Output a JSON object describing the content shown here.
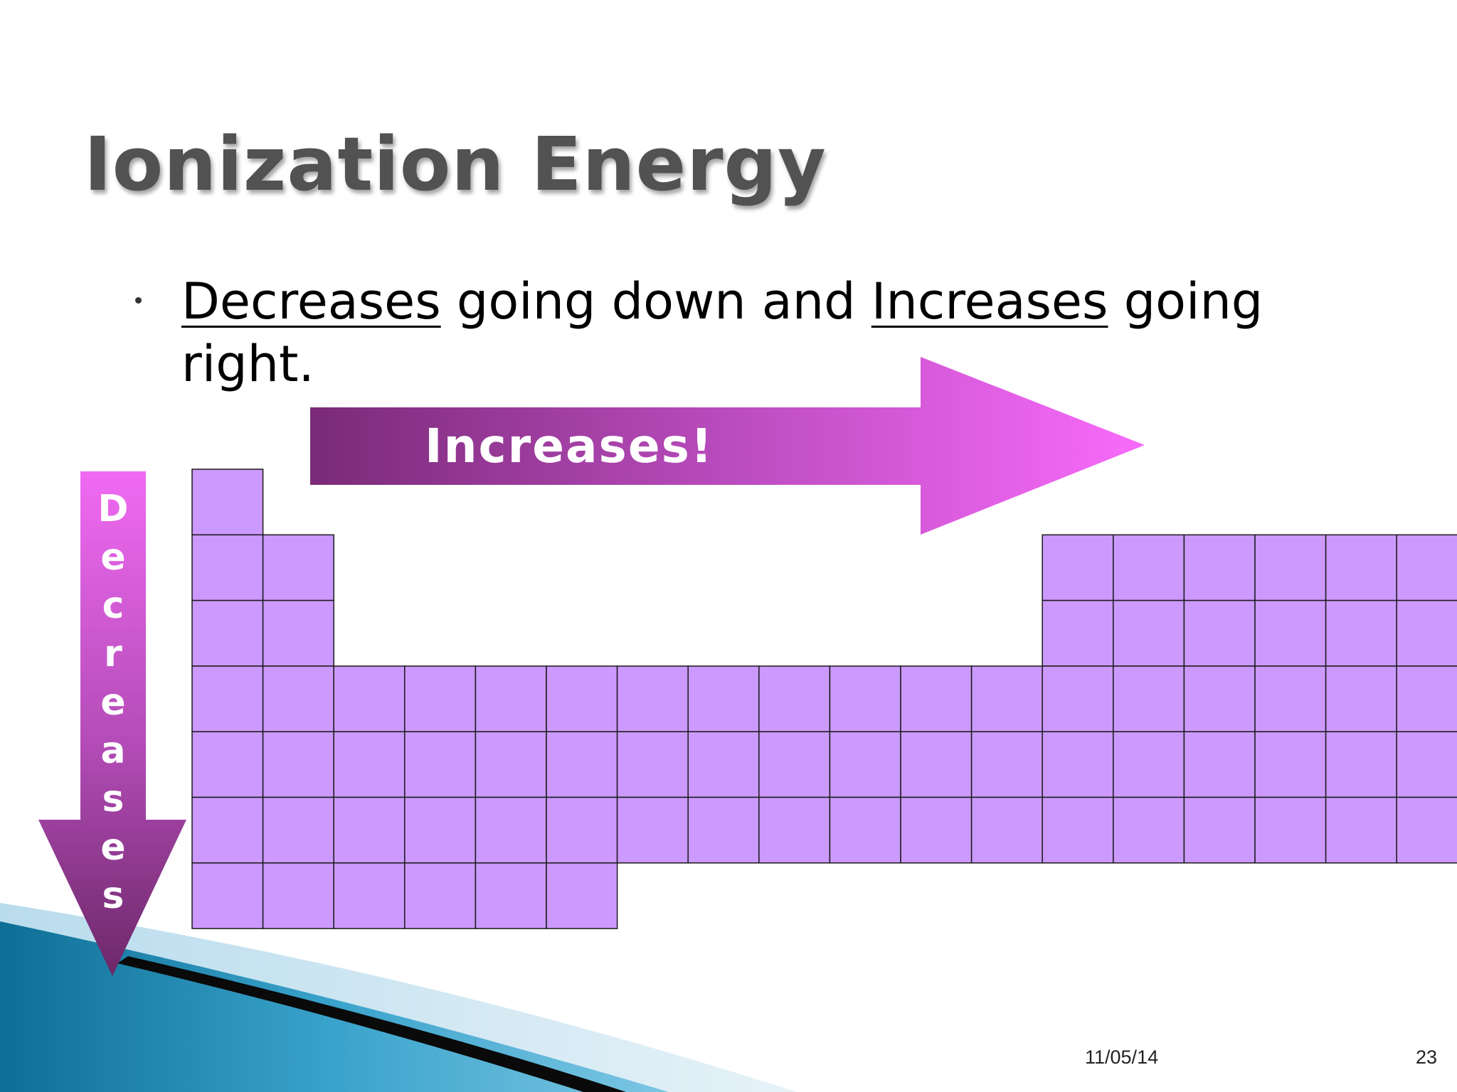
{
  "slide": {
    "title": "Ionization Energy",
    "bullet": {
      "part1": "Decreases",
      "part2": " going down and ",
      "part3": "Increases",
      "part4": " going right."
    },
    "arrows": {
      "horizontal_label": "Increases!",
      "vertical_label": "Decreases"
    },
    "footer": {
      "date": "11/05/14",
      "page": "23"
    }
  },
  "colors": {
    "cell_fill": "#cc99ff",
    "arrow_dark": "#7a2a78",
    "arrow_light": "#f566f5",
    "title_text": "#525252"
  }
}
